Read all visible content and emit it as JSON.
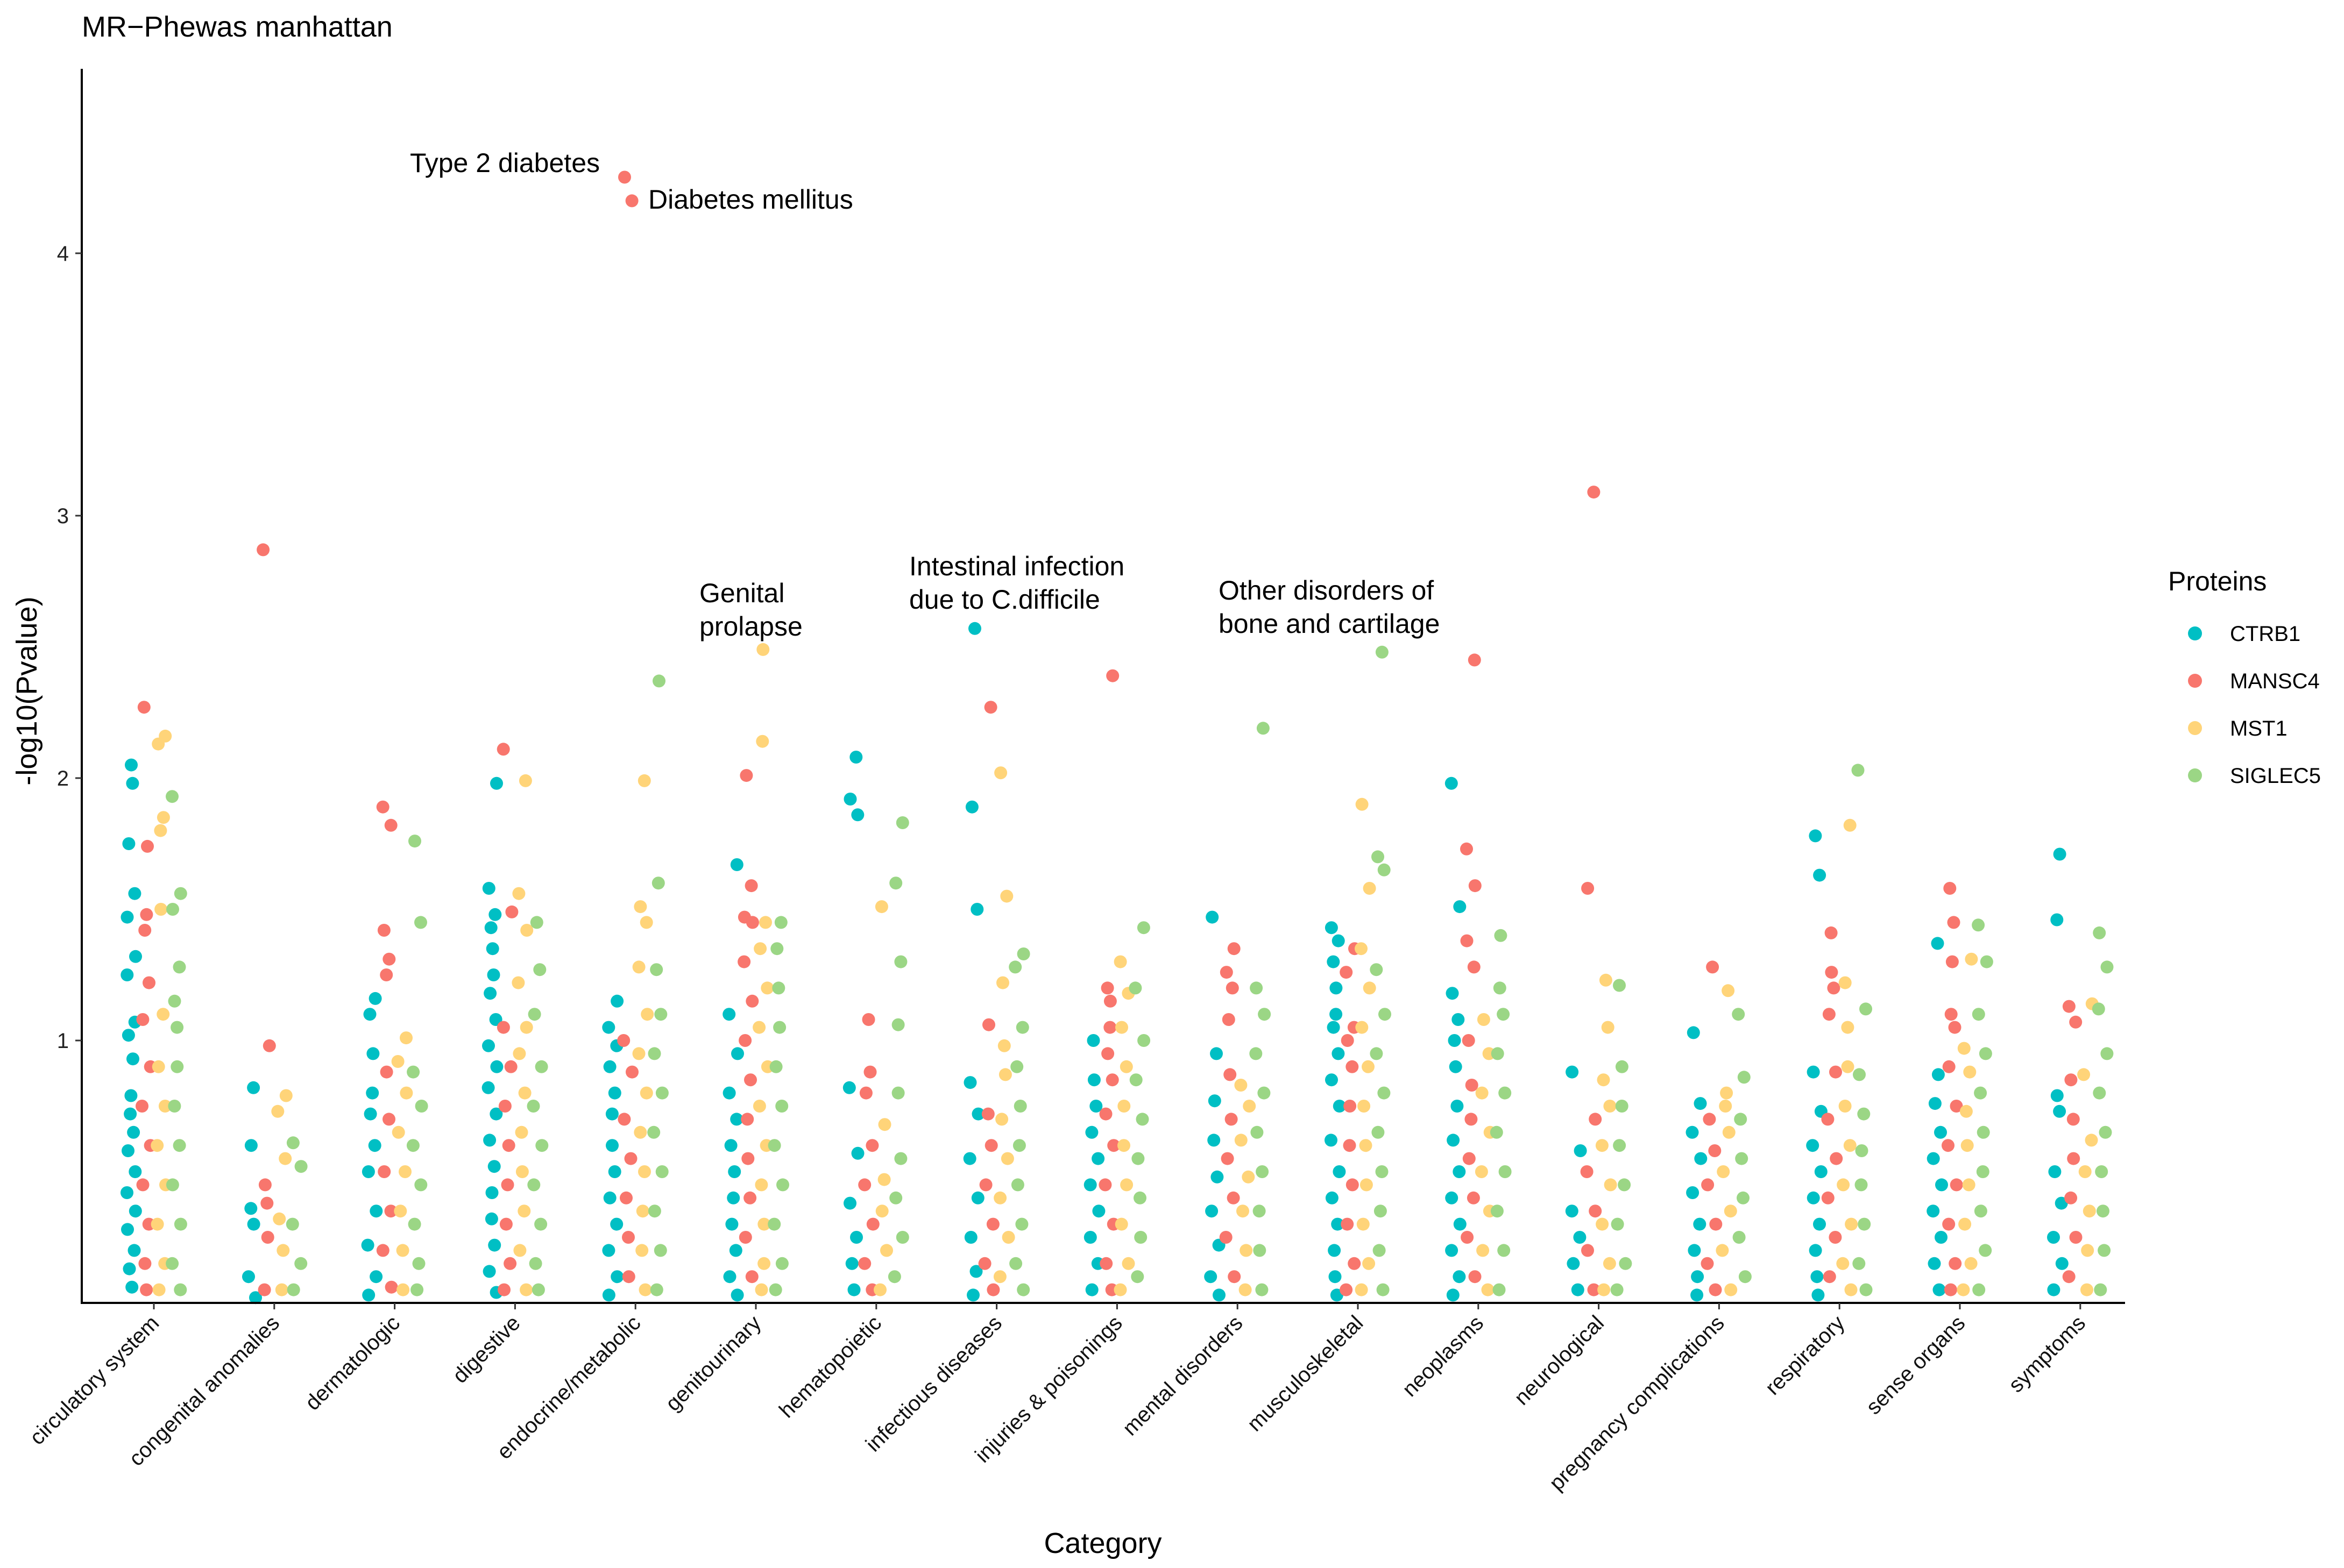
{
  "chart_data": {
    "type": "scatter",
    "title": "MR−Phewas manhattan",
    "xlabel": "Category",
    "ylabel": "-log10(Pvalue)",
    "ylim": [
      0,
      4.7
    ],
    "yticks": [
      1,
      2,
      3,
      4
    ],
    "grid": false,
    "categories": [
      "circulatory system",
      "congenital anomalies",
      "dermatologic",
      "digestive",
      "endocrine/metabolic",
      "genitourinary",
      "hematopoietic",
      "infectious diseases",
      "injuries & poisonings",
      "mental disorders",
      "musculoskeletal",
      "neoplasms",
      "neurological",
      "pregnancy complications",
      "respiratory",
      "sense organs",
      "symptoms"
    ],
    "legend": {
      "title": "Proteins",
      "position": "right",
      "entries": [
        {
          "name": "CTRB1",
          "color": "#00BFC4"
        },
        {
          "name": "MANSC4",
          "color": "#F8766D"
        },
        {
          "name": "MST1",
          "color": "#FFD479"
        },
        {
          "name": "SIGLEC5",
          "color": "#9BD685"
        }
      ]
    },
    "series": [
      {
        "name": "CTRB1",
        "color": "#00BFC4",
        "values": [
          [
            2.05,
            1.98,
            1.75,
            1.56,
            1.47,
            1.32,
            1.25,
            1.07,
            1.02,
            0.93,
            0.79,
            0.72,
            0.65,
            0.58,
            0.5,
            0.42,
            0.35,
            0.28,
            0.2,
            0.13,
            0.06
          ],
          [
            0.82,
            0.6,
            0.36,
            0.3,
            0.1,
            0.02
          ],
          [
            1.16,
            1.1,
            0.95,
            0.8,
            0.72,
            0.6,
            0.5,
            0.35,
            0.22,
            0.1,
            0.03
          ],
          [
            1.98,
            1.58,
            1.48,
            1.43,
            1.35,
            1.25,
            1.18,
            1.08,
            0.98,
            0.9,
            0.82,
            0.72,
            0.62,
            0.52,
            0.42,
            0.32,
            0.22,
            0.12,
            0.04
          ],
          [
            1.15,
            1.05,
            0.98,
            0.9,
            0.8,
            0.72,
            0.6,
            0.5,
            0.4,
            0.3,
            0.2,
            0.1,
            0.03
          ],
          [
            1.67,
            1.1,
            0.95,
            0.8,
            0.7,
            0.6,
            0.5,
            0.4,
            0.3,
            0.2,
            0.1,
            0.03
          ],
          [
            2.08,
            1.92,
            1.86,
            0.82,
            0.57,
            0.38,
            0.25,
            0.15,
            0.05
          ],
          [
            2.57,
            1.89,
            1.5,
            0.84,
            0.72,
            0.55,
            0.4,
            0.25,
            0.12,
            0.03
          ],
          [
            1.0,
            0.85,
            0.75,
            0.65,
            0.55,
            0.45,
            0.35,
            0.25,
            0.15,
            0.05
          ],
          [
            1.47,
            0.95,
            0.77,
            0.62,
            0.48,
            0.35,
            0.22,
            0.1,
            0.03
          ],
          [
            1.43,
            1.38,
            1.3,
            1.2,
            1.1,
            1.05,
            0.95,
            0.85,
            0.75,
            0.62,
            0.5,
            0.4,
            0.3,
            0.2,
            0.1,
            0.03
          ],
          [
            1.98,
            1.51,
            1.18,
            1.08,
            1.0,
            0.9,
            0.75,
            0.62,
            0.5,
            0.4,
            0.3,
            0.2,
            0.1,
            0.03
          ],
          [
            0.88,
            0.58,
            0.35,
            0.25,
            0.15,
            0.05
          ],
          [
            1.03,
            0.76,
            0.65,
            0.55,
            0.42,
            0.3,
            0.2,
            0.1,
            0.03
          ],
          [
            1.78,
            1.63,
            0.88,
            0.73,
            0.6,
            0.5,
            0.4,
            0.3,
            0.2,
            0.1,
            0.03
          ],
          [
            1.37,
            0.87,
            0.76,
            0.65,
            0.55,
            0.45,
            0.35,
            0.25,
            0.15,
            0.05
          ],
          [
            1.71,
            1.46,
            0.79,
            0.73,
            0.5,
            0.38,
            0.25,
            0.15,
            0.05
          ]
        ]
      },
      {
        "name": "MANSC4",
        "color": "#F8766D",
        "values": [
          [
            2.27,
            1.74,
            1.48,
            1.42,
            1.22,
            1.08,
            0.9,
            0.75,
            0.6,
            0.45,
            0.3,
            0.15,
            0.05
          ],
          [
            2.87,
            0.98,
            0.45,
            0.38,
            0.25,
            0.05
          ],
          [
            1.89,
            1.82,
            1.42,
            1.31,
            1.25,
            0.88,
            0.7,
            0.5,
            0.35,
            0.2,
            0.06
          ],
          [
            2.11,
            1.49,
            1.05,
            0.9,
            0.75,
            0.6,
            0.45,
            0.3,
            0.15,
            0.05
          ],
          [
            4.29,
            4.2,
            1.0,
            0.88,
            0.7,
            0.55,
            0.4,
            0.25,
            0.1
          ],
          [
            2.01,
            1.59,
            1.47,
            1.45,
            1.3,
            1.15,
            1.0,
            0.85,
            0.7,
            0.55,
            0.4,
            0.25,
            0.1
          ],
          [
            1.08,
            0.88,
            0.8,
            0.6,
            0.45,
            0.3,
            0.15,
            0.05
          ],
          [
            2.27,
            1.06,
            0.72,
            0.6,
            0.45,
            0.3,
            0.15,
            0.05
          ],
          [
            2.39,
            1.2,
            1.15,
            1.05,
            0.95,
            0.85,
            0.72,
            0.6,
            0.45,
            0.3,
            0.15,
            0.05
          ],
          [
            1.35,
            1.26,
            1.2,
            1.08,
            0.87,
            0.7,
            0.55,
            0.4,
            0.25,
            0.1
          ],
          [
            1.35,
            1.26,
            1.05,
            1.0,
            0.9,
            0.75,
            0.6,
            0.45,
            0.3,
            0.15,
            0.05
          ],
          [
            2.45,
            1.73,
            1.59,
            1.38,
            1.28,
            1.0,
            0.83,
            0.7,
            0.55,
            0.4,
            0.25,
            0.1
          ],
          [
            3.09,
            1.58,
            0.7,
            0.5,
            0.35,
            0.2,
            0.05
          ],
          [
            1.28,
            0.7,
            0.58,
            0.45,
            0.3,
            0.15,
            0.05
          ],
          [
            1.41,
            1.26,
            1.2,
            1.1,
            0.88,
            0.7,
            0.55,
            0.4,
            0.25,
            0.1
          ],
          [
            1.58,
            1.45,
            1.3,
            1.1,
            1.05,
            0.9,
            0.75,
            0.6,
            0.45,
            0.3,
            0.15,
            0.05
          ],
          [
            1.13,
            1.07,
            0.85,
            0.7,
            0.55,
            0.4,
            0.25,
            0.1
          ]
        ]
      },
      {
        "name": "MST1",
        "color": "#FFD479",
        "values": [
          [
            2.16,
            2.13,
            1.85,
            1.8,
            1.5,
            1.1,
            0.9,
            0.75,
            0.6,
            0.45,
            0.3,
            0.15,
            0.05
          ],
          [
            0.79,
            0.73,
            0.55,
            0.32,
            0.2,
            0.05
          ],
          [
            1.01,
            0.92,
            0.8,
            0.65,
            0.5,
            0.35,
            0.2,
            0.05
          ],
          [
            1.99,
            1.56,
            1.42,
            1.22,
            1.05,
            0.95,
            0.8,
            0.65,
            0.5,
            0.35,
            0.2,
            0.05
          ],
          [
            1.99,
            1.51,
            1.45,
            1.28,
            1.1,
            0.95,
            0.8,
            0.65,
            0.5,
            0.35,
            0.2,
            0.05
          ],
          [
            2.49,
            2.14,
            1.45,
            1.35,
            1.2,
            1.05,
            0.9,
            0.75,
            0.6,
            0.45,
            0.3,
            0.15,
            0.05
          ],
          [
            1.51,
            0.68,
            0.47,
            0.35,
            0.2,
            0.05
          ],
          [
            2.02,
            1.55,
            1.22,
            0.98,
            0.87,
            0.7,
            0.55,
            0.4,
            0.25,
            0.1
          ],
          [
            1.3,
            1.18,
            1.05,
            0.9,
            0.75,
            0.6,
            0.45,
            0.3,
            0.15,
            0.05
          ],
          [
            0.83,
            0.75,
            0.62,
            0.48,
            0.35,
            0.2,
            0.05
          ],
          [
            1.9,
            1.58,
            1.35,
            1.2,
            1.05,
            0.9,
            0.75,
            0.6,
            0.45,
            0.3,
            0.15,
            0.05
          ],
          [
            1.08,
            0.95,
            0.8,
            0.65,
            0.5,
            0.35,
            0.2,
            0.05
          ],
          [
            1.23,
            1.05,
            0.85,
            0.75,
            0.6,
            0.45,
            0.3,
            0.15,
            0.05
          ],
          [
            1.19,
            0.8,
            0.75,
            0.65,
            0.5,
            0.35,
            0.2,
            0.05
          ],
          [
            1.82,
            1.22,
            1.05,
            0.9,
            0.75,
            0.6,
            0.45,
            0.3,
            0.15,
            0.05
          ],
          [
            1.31,
            0.97,
            0.88,
            0.73,
            0.6,
            0.45,
            0.3,
            0.15,
            0.05
          ],
          [
            1.14,
            0.87,
            0.62,
            0.5,
            0.35,
            0.2,
            0.05
          ]
        ]
      },
      {
        "name": "SIGLEC5",
        "color": "#9BD685",
        "values": [
          [
            1.93,
            1.56,
            1.5,
            1.28,
            1.15,
            1.05,
            0.9,
            0.75,
            0.6,
            0.45,
            0.3,
            0.15,
            0.05
          ],
          [
            0.61,
            0.52,
            0.3,
            0.15,
            0.05
          ],
          [
            1.76,
            1.45,
            0.88,
            0.75,
            0.6,
            0.45,
            0.3,
            0.15,
            0.05
          ],
          [
            1.45,
            1.27,
            1.1,
            0.9,
            0.75,
            0.6,
            0.45,
            0.3,
            0.15,
            0.05
          ],
          [
            2.37,
            1.6,
            1.27,
            1.1,
            0.95,
            0.8,
            0.65,
            0.5,
            0.35,
            0.2,
            0.05
          ],
          [
            1.45,
            1.35,
            1.2,
            1.05,
            0.9,
            0.75,
            0.6,
            0.45,
            0.3,
            0.15,
            0.05
          ],
          [
            1.83,
            1.6,
            1.3,
            1.06,
            0.8,
            0.55,
            0.4,
            0.25,
            0.1
          ],
          [
            1.33,
            1.28,
            1.05,
            0.9,
            0.75,
            0.6,
            0.45,
            0.3,
            0.15,
            0.05
          ],
          [
            1.43,
            1.2,
            1.0,
            0.85,
            0.7,
            0.55,
            0.4,
            0.25,
            0.1
          ],
          [
            2.19,
            1.2,
            1.1,
            0.95,
            0.8,
            0.65,
            0.5,
            0.35,
            0.2,
            0.05
          ],
          [
            2.48,
            1.7,
            1.65,
            1.27,
            1.1,
            0.95,
            0.8,
            0.65,
            0.5,
            0.35,
            0.2,
            0.05
          ],
          [
            1.4,
            1.2,
            1.1,
            0.95,
            0.8,
            0.65,
            0.5,
            0.35,
            0.2,
            0.05
          ],
          [
            1.21,
            0.9,
            0.75,
            0.6,
            0.45,
            0.3,
            0.15,
            0.05
          ],
          [
            1.1,
            0.86,
            0.7,
            0.55,
            0.4,
            0.25,
            0.1
          ],
          [
            2.03,
            1.12,
            0.87,
            0.72,
            0.58,
            0.45,
            0.3,
            0.15,
            0.05
          ],
          [
            1.44,
            1.3,
            1.1,
            0.95,
            0.8,
            0.65,
            0.5,
            0.35,
            0.2,
            0.05
          ],
          [
            1.41,
            1.28,
            1.12,
            0.95,
            0.8,
            0.65,
            0.5,
            0.35,
            0.2,
            0.05
          ]
        ]
      }
    ],
    "annotations": [
      {
        "lines": [
          "Type 2 diabetes"
        ],
        "category": "endocrine/metabolic",
        "y": 4.29,
        "anchor": "end"
      },
      {
        "lines": [
          "Diabetes mellitus"
        ],
        "category": "endocrine/metabolic",
        "y": 4.2,
        "anchor": "start"
      },
      {
        "lines": [
          "Genital",
          "prolapse"
        ],
        "category": "genitourinary",
        "y": 2.49,
        "anchor": "middle"
      },
      {
        "lines": [
          "Intestinal infection",
          "due to C.difficile"
        ],
        "category": "infectious diseases",
        "y": 2.57,
        "anchor": "middle"
      },
      {
        "lines": [
          "Other disorders of",
          "bone and cartilage"
        ],
        "category": "musculoskeletal",
        "y": 2.48,
        "anchor": "middle"
      }
    ]
  }
}
